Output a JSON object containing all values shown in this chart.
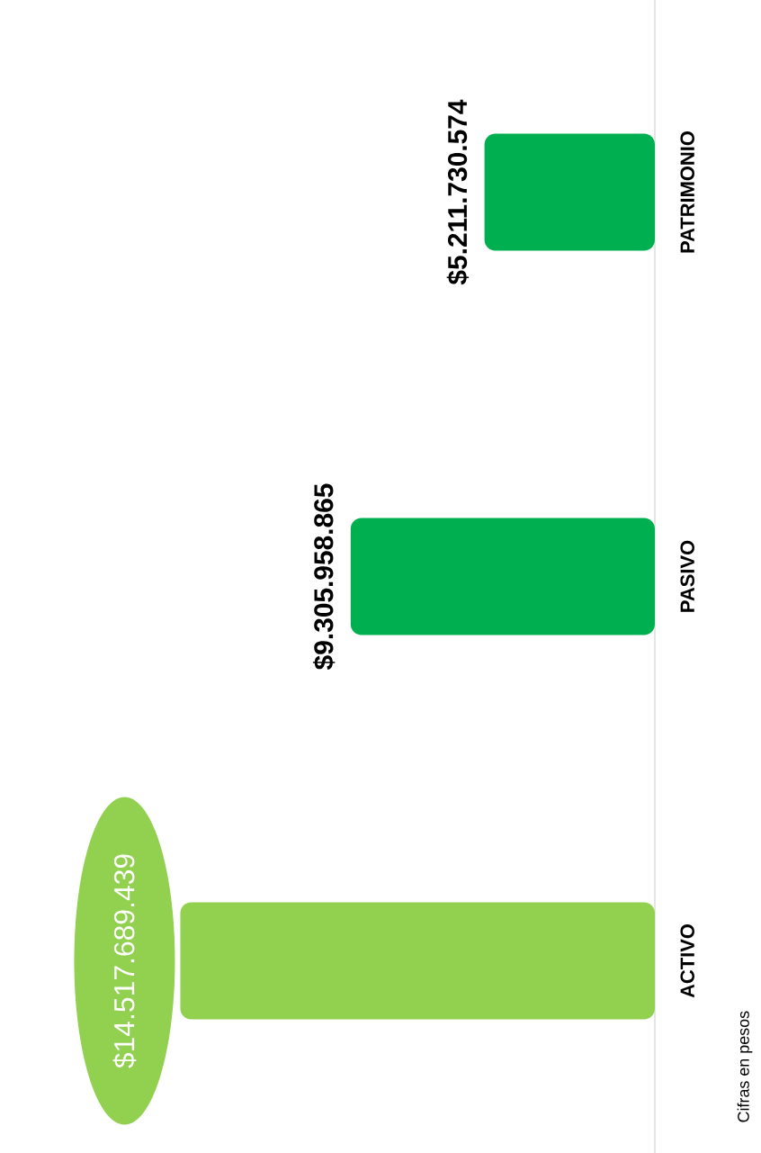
{
  "chart_data": {
    "type": "bar",
    "orientation": "horizontal",
    "categories": [
      "PATRIMONIO",
      "PASIVO",
      "ACTIVO"
    ],
    "values": [
      5211730574,
      9305958865,
      14517689439
    ],
    "value_labels": [
      "$5.211.730.574",
      "$9.305.958.865",
      "$14.517.689.439"
    ],
    "colors": [
      "#00b050",
      "#00b050",
      "#92d050"
    ],
    "annotations": [
      "Cifras en pesos"
    ]
  }
}
